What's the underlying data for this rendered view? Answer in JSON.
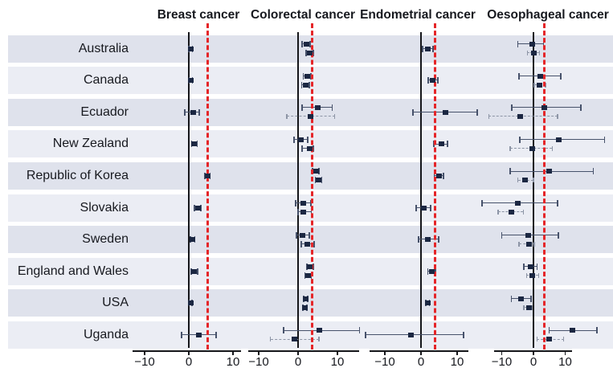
{
  "chart_data": {
    "type": "forest",
    "countries": [
      "Australia",
      "Canada",
      "Ecuador",
      "New Zealand",
      "Republic of Korea",
      "Slovakia",
      "Sweden",
      "England and Wales",
      "USA",
      "Uganda"
    ],
    "xticks": [
      -10,
      0,
      10
    ],
    "xticks_labels": [
      "−10",
      "0",
      "10"
    ],
    "grid": false,
    "legend": "none",
    "panels": [
      {
        "title": "Breast cancer",
        "zero_line": 0,
        "ref_line": 4.3,
        "xlim": [
          -12.7,
          11.8
        ],
        "estimates": [
          [
            {
              "est": 0.4,
              "lo": 0.0,
              "hi": 0.8,
              "style": "solid"
            }
          ],
          [
            {
              "est": 0.4,
              "lo": 0.1,
              "hi": 0.8,
              "style": "solid"
            }
          ],
          [
            {
              "est": 1.0,
              "lo": -0.9,
              "hi": 2.4,
              "style": "solid"
            }
          ],
          [
            {
              "est": 1.2,
              "lo": 0.6,
              "hi": 1.9,
              "style": "solid"
            }
          ],
          [
            {
              "est": 4.2,
              "lo": 3.6,
              "hi": 4.8,
              "style": "solid"
            }
          ],
          [
            {
              "est": 2.0,
              "lo": 1.3,
              "hi": 2.7,
              "style": "solid"
            }
          ],
          [
            {
              "est": 0.9,
              "lo": 0.4,
              "hi": 1.4,
              "style": "solid"
            }
          ],
          [
            {
              "est": 1.2,
              "lo": 0.5,
              "hi": 2.0,
              "style": "solid"
            }
          ],
          [
            {
              "est": 0.4,
              "lo": 0.1,
              "hi": 0.7,
              "style": "solid"
            }
          ],
          [
            {
              "est": 2.2,
              "lo": -1.6,
              "hi": 6.2,
              "style": "solid"
            }
          ]
        ]
      },
      {
        "title": "Colorectal cancer",
        "zero_line": 0,
        "ref_line": 3.5,
        "xlim": [
          -12.7,
          15.5
        ],
        "estimates": [
          [
            {
              "est": 2.1,
              "lo": 1.0,
              "hi": 3.1,
              "style": "solid"
            },
            {
              "est": 3.0,
              "lo": 2.1,
              "hi": 3.9,
              "style": "solid"
            }
          ],
          [
            {
              "est": 2.3,
              "lo": 1.3,
              "hi": 3.3,
              "style": "solid"
            },
            {
              "est": 1.9,
              "lo": 0.9,
              "hi": 2.9,
              "style": "solid"
            }
          ],
          [
            {
              "est": 4.9,
              "lo": 1.0,
              "hi": 8.7,
              "style": "solid"
            },
            {
              "est": 3.2,
              "lo": -2.9,
              "hi": 9.3,
              "style": "dashed"
            }
          ],
          [
            {
              "est": 0.8,
              "lo": -1.0,
              "hi": 2.4,
              "style": "solid"
            },
            {
              "est": 3.0,
              "lo": 1.0,
              "hi": 3.9,
              "style": "solid"
            }
          ],
          [
            {
              "est": 4.5,
              "lo": 3.7,
              "hi": 5.3,
              "style": "solid"
            },
            {
              "est": 5.2,
              "lo": 4.4,
              "hi": 6.0,
              "style": "solid"
            }
          ],
          [
            {
              "est": 1.3,
              "lo": -0.6,
              "hi": 3.3,
              "style": "solid"
            },
            {
              "est": 1.4,
              "lo": 0.0,
              "hi": 3.4,
              "style": "solid"
            }
          ],
          [
            {
              "est": 1.2,
              "lo": -0.4,
              "hi": 2.9,
              "style": "solid"
            },
            {
              "est": 2.4,
              "lo": 0.8,
              "hi": 4.1,
              "style": "solid"
            }
          ],
          [
            {
              "est": 3.0,
              "lo": 2.2,
              "hi": 3.9,
              "style": "solid"
            },
            {
              "est": 2.5,
              "lo": 1.7,
              "hi": 3.4,
              "style": "solid"
            }
          ],
          [
            {
              "est": 1.9,
              "lo": 1.4,
              "hi": 2.4,
              "style": "solid"
            },
            {
              "est": 1.7,
              "lo": 1.2,
              "hi": 2.2,
              "style": "solid"
            }
          ],
          [
            {
              "est": 5.5,
              "lo": -3.7,
              "hi": 15.6,
              "style": "solid"
            },
            {
              "est": -0.9,
              "lo": -7.0,
              "hi": 5.3,
              "style": "dashed"
            }
          ]
        ]
      },
      {
        "title": "Endometrial cancer",
        "zero_line": 0,
        "ref_line": 3.8,
        "xlim": [
          -14.2,
          13.1
        ],
        "estimates": [
          [
            {
              "est": 1.9,
              "lo": 0.4,
              "hi": 3.3,
              "style": "solid"
            }
          ],
          [
            {
              "est": 3.3,
              "lo": 2.0,
              "hi": 4.7,
              "style": "solid"
            }
          ],
          [
            {
              "est": 6.7,
              "lo": -2.2,
              "hi": 15.6,
              "style": "solid"
            }
          ],
          [
            {
              "est": 5.6,
              "lo": 3.6,
              "hi": 7.3,
              "style": "solid"
            }
          ],
          [
            {
              "est": 5.1,
              "lo": 3.7,
              "hi": 6.2,
              "style": "solid"
            }
          ],
          [
            {
              "est": 0.7,
              "lo": -1.3,
              "hi": 2.7,
              "style": "solid"
            }
          ],
          [
            {
              "est": 1.8,
              "lo": -0.7,
              "hi": 4.9,
              "style": "solid"
            }
          ],
          [
            {
              "est": 3.1,
              "lo": 1.9,
              "hi": 4.0,
              "style": "solid"
            }
          ],
          [
            {
              "est": 1.8,
              "lo": 1.3,
              "hi": 2.3,
              "style": "solid"
            }
          ],
          [
            {
              "est": -2.7,
              "lo": -15.3,
              "hi": 11.8,
              "style": "solid"
            }
          ]
        ]
      },
      {
        "title": "Oesophageal cancer",
        "zero_line": 0,
        "ref_line": 3.3,
        "xlim": [
          -12.4,
          12.4
        ],
        "estimates": [
          [
            {
              "est": -0.5,
              "lo": -4.9,
              "hi": 3.2,
              "style": "solid"
            },
            {
              "est": 0.0,
              "lo": -1.9,
              "hi": 1.9,
              "style": "dashed"
            }
          ],
          [
            {
              "est": 2.2,
              "lo": -4.6,
              "hi": 8.6,
              "style": "solid"
            },
            {
              "est": 2.0,
              "lo": 0.3,
              "hi": 3.8,
              "style": "dashed"
            }
          ],
          [
            {
              "est": 3.5,
              "lo": -6.8,
              "hi": 14.9,
              "style": "solid"
            },
            {
              "est": -4.1,
              "lo": -14.1,
              "hi": 7.6,
              "style": "dashed"
            }
          ],
          [
            {
              "est": 8.1,
              "lo": -4.3,
              "hi": 22.4,
              "style": "solid"
            },
            {
              "est": -0.5,
              "lo": -7.3,
              "hi": 5.9,
              "style": "dashed"
            }
          ],
          [
            {
              "est": 4.9,
              "lo": -7.3,
              "hi": 18.9,
              "style": "solid"
            },
            {
              "est": -2.7,
              "lo": -4.9,
              "hi": 0.0,
              "style": "dashed"
            }
          ],
          [
            {
              "est": -4.9,
              "lo": -16.2,
              "hi": 7.6,
              "style": "solid"
            },
            {
              "est": -7.0,
              "lo": -11.1,
              "hi": -3.2,
              "style": "dashed"
            }
          ],
          [
            {
              "est": -1.6,
              "lo": -10.0,
              "hi": 7.8,
              "style": "solid"
            },
            {
              "est": -1.4,
              "lo": -4.6,
              "hi": 0.3,
              "style": "dashed"
            }
          ],
          [
            {
              "est": -0.8,
              "lo": -3.0,
              "hi": 1.1,
              "style": "solid"
            },
            {
              "est": -0.5,
              "lo": -2.2,
              "hi": 1.6,
              "style": "dashed"
            }
          ],
          [
            {
              "est": -3.8,
              "lo": -7.0,
              "hi": -0.8,
              "style": "solid"
            },
            {
              "est": -1.4,
              "lo": -3.0,
              "hi": -0.5,
              "style": "dashed"
            }
          ],
          [
            {
              "est": 12.4,
              "lo": 4.9,
              "hi": 20.0,
              "style": "solid"
            },
            {
              "est": 4.9,
              "lo": 1.1,
              "hi": 9.5,
              "style": "dashed"
            }
          ]
        ]
      }
    ]
  },
  "colors": {
    "band_dark": "#dfe2ec",
    "band_light": "#ebedf4",
    "marker": "#1b2742",
    "ci_solid": "#47526b",
    "ci_dashed": "#8d95a6",
    "ref_line": "#e52528",
    "zero_line": "#15161a",
    "text": "#17191f"
  }
}
